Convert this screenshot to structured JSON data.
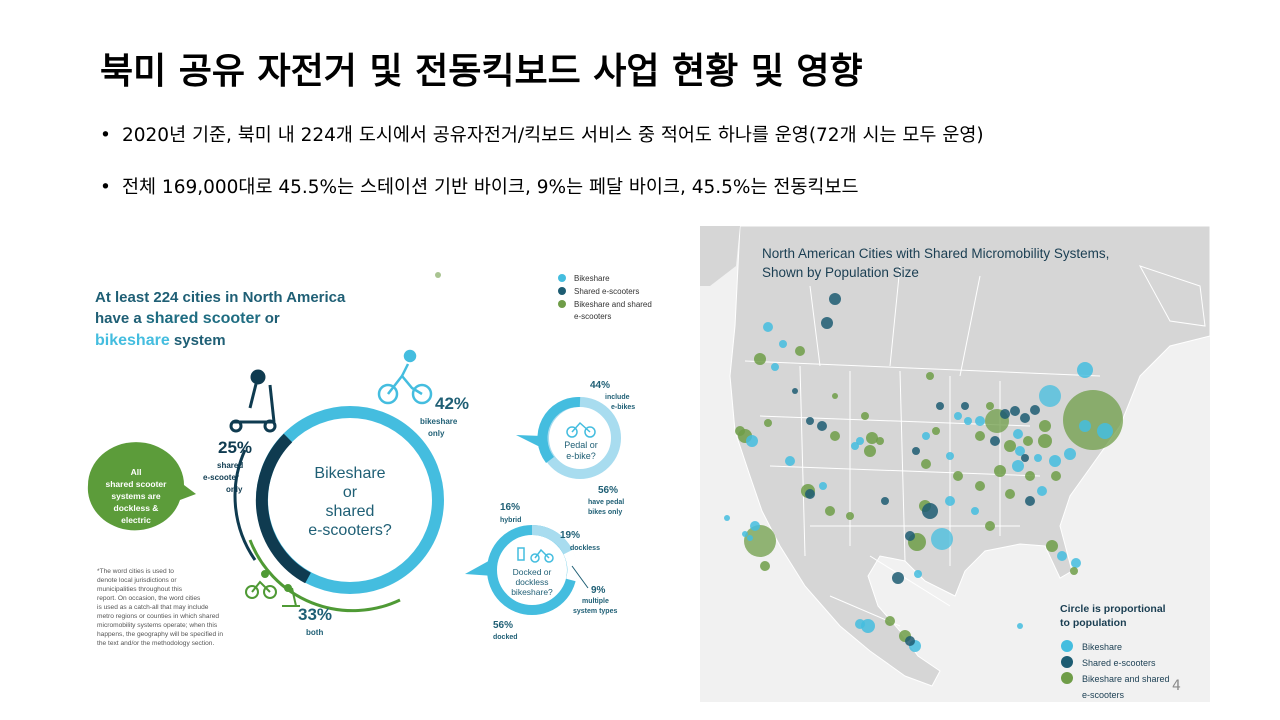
{
  "slide": {
    "title": "북미 공유 자전거 및 전동킥보드 사업 현황 및 영향",
    "bullets": [
      "2020년 기준, 북미 내 224개 도시에서 공유자전거/킥보드 서비스 중 적어도 하나를 운영(72개 시는 모두 운영)",
      "전체 169,000대로 45.5%는 스테이션 기반 바이크, 9%는 페달 바이크, 45.5%는 전동킥보드"
    ],
    "page_number": "4"
  },
  "infographic": {
    "headline": [
      "At least 224 cities in North America",
      "have a ",
      "shared scooter",
      " or",
      "bikeshare",
      " system"
    ],
    "legend": [
      "Bikeshare",
      "Shared e-scooters",
      "Bikeshare and shared",
      "e-scooters"
    ],
    "center_text": [
      "Bikeshare",
      "or",
      "shared",
      "e-scooters?"
    ],
    "bikeshare_only": {
      "pct": "42%",
      "label1": "bikeshare",
      "label2": "only"
    },
    "escooter_only": {
      "pct": "25%",
      "label1": "shared",
      "label2": "e-scooter",
      "label3": "only"
    },
    "both": {
      "pct": "33%",
      "label": "both"
    },
    "dockless_bubble": [
      "All",
      "shared scooter",
      "systems are",
      "dockless &",
      "electric"
    ],
    "pedal_ring": {
      "center": [
        "Pedal or",
        "e-bike?"
      ],
      "top_pct": "44%",
      "top_label": [
        "include",
        "e-bikes"
      ],
      "bottom_pct": "56%",
      "bottom_label": [
        "have pedal",
        "bikes only"
      ]
    },
    "dock_ring": {
      "center": [
        "Docked or",
        "dockless",
        "bikeshare?"
      ],
      "hybrid_pct": "16%",
      "hybrid_label": "hybrid",
      "dockless_pct": "19%",
      "dockless_label": "dockless",
      "multiple_pct": "9%",
      "multiple_label": [
        "multiple",
        "system types"
      ],
      "docked_pct": "56%",
      "docked_label": "docked"
    },
    "footnote": [
      "*The word cities is used to",
      "denote local jurisdictions or",
      "municipalities throughout this",
      "report. On occasion, the word cities",
      "is used as a catch-all that may include",
      "metro regions or counties in which shared",
      "micromobility systems operate; when this",
      "happens, the geography will be specified in",
      "the text and/or the methodology section."
    ],
    "colors": {
      "teal": "#1f6d82",
      "light_blue": "#44bddf",
      "pale_blue": "#a8dcef",
      "green": "#4f9a35",
      "dark": "#0f3b50",
      "bubble_green": "#5c9c3a"
    }
  },
  "map": {
    "title": [
      "North American Cities with Shared Micromobility Systems,",
      "Shown by Population Size"
    ],
    "legend_title": [
      "Circle is proportional",
      "to population"
    ],
    "legend": [
      "Bikeshare",
      "Shared e-scooters",
      "Bikeshare and shared",
      "e-scooters"
    ],
    "colors": {
      "bikeshare": "#44bddf",
      "escooter": "#1d5c72",
      "both": "#6f9d48",
      "land": "#d4d4d4",
      "water": "#f1f1f1"
    }
  }
}
